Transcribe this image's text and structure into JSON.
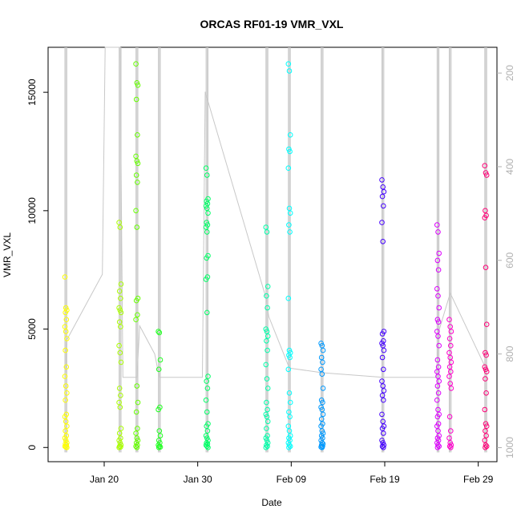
{
  "chart_data": {
    "type": "scatter",
    "title": "ORCAS RF01-19 VMR_VXL",
    "xlabel": "Date",
    "ylabel": "VMR_VXL",
    "x_axis": {
      "type": "date",
      "lim": [
        "2016-01-14",
        "2016-03-02"
      ],
      "ticks": [
        {
          "date": "2016-01-20",
          "label": "Jan 20"
        },
        {
          "date": "2016-01-30",
          "label": "Jan 30"
        },
        {
          "date": "2016-02-09",
          "label": "Feb 09"
        },
        {
          "date": "2016-02-19",
          "label": "Feb 19"
        },
        {
          "date": "2016-02-29",
          "label": "Feb 29"
        }
      ]
    },
    "y_axis": {
      "lim": [
        -600,
        16900
      ],
      "ticks": [
        0,
        5000,
        10000,
        15000
      ]
    },
    "y2_axis": {
      "label": "",
      "color": "#b0b0b0",
      "lim": [
        1030,
        145
      ],
      "ticks": [
        200,
        400,
        600,
        800,
        1000
      ]
    },
    "grid": false,
    "legend": "none",
    "pressure_line_color": "#c8c8c8",
    "pressure_trace": [
      {
        "date": "2016-01-15.9",
        "p": 840
      },
      {
        "date": "2016-01-16",
        "p": 770
      },
      {
        "date": "2016-01-19.8",
        "p": 630
      },
      {
        "date": "2016-01-20.1",
        "p": 145
      },
      {
        "date": "2016-01-21.7",
        "p": 145
      },
      {
        "date": "2016-01-22",
        "p": 850
      },
      {
        "date": "2016-01-23.5",
        "p": 850
      },
      {
        "date": "2016-01-23.8",
        "p": 740
      },
      {
        "date": "2016-01-25.4",
        "p": 800
      },
      {
        "date": "2016-01-25.9",
        "p": 850
      },
      {
        "date": "2016-01-30.5",
        "p": 850
      },
      {
        "date": "2016-01-30.8",
        "p": 240
      },
      {
        "date": "2016-02-06.3",
        "p": 680
      },
      {
        "date": "2016-02-06.6",
        "p": 720
      },
      {
        "date": "2016-02-08.8",
        "p": 830
      },
      {
        "date": "2016-02-12.3",
        "p": 840
      },
      {
        "date": "2016-02-18.8",
        "p": 850
      },
      {
        "date": "2016-02-24.5",
        "p": 850
      },
      {
        "date": "2016-02-24.8",
        "p": 750
      },
      {
        "date": "2016-02-26",
        "p": 670
      },
      {
        "date": "2016-02-29.8",
        "p": 830
      }
    ],
    "flight_profiles": [
      {
        "date": "2016-01-15.9",
        "p_top": 145,
        "p_bottom": 1010
      },
      {
        "date": "2016-01-21.7",
        "p_top": 145,
        "p_bottom": 1010
      },
      {
        "date": "2016-01-23.5",
        "p_top": 145,
        "p_bottom": 1010
      },
      {
        "date": "2016-01-25.9",
        "p_top": 145,
        "p_bottom": 1010
      },
      {
        "date": "2016-01-31",
        "p_top": 145,
        "p_bottom": 1010
      },
      {
        "date": "2016-02-06.4",
        "p_top": 145,
        "p_bottom": 1010
      },
      {
        "date": "2016-02-08.8",
        "p_top": 145,
        "p_bottom": 1010
      },
      {
        "date": "2016-02-12.3",
        "p_top": 145,
        "p_bottom": 1010
      },
      {
        "date": "2016-02-18.8",
        "p_top": 145,
        "p_bottom": 1010
      },
      {
        "date": "2016-02-24.7",
        "p_top": 145,
        "p_bottom": 1010
      },
      {
        "date": "2016-02-26",
        "p_top": 145,
        "p_bottom": 1010
      },
      {
        "date": "2016-02-29.8",
        "p_top": 145,
        "p_bottom": 1010
      }
    ],
    "series": [
      {
        "date": "2016-01-15.9",
        "color": "#ffff00",
        "values": [
          7200,
          5900,
          5800,
          5700,
          5400,
          5100,
          4900,
          4600,
          4100,
          3400,
          3000,
          2600,
          2300,
          2000,
          1400,
          1300,
          1100,
          900,
          700,
          500,
          400,
          300,
          200,
          150,
          100,
          50,
          20,
          0
        ]
      },
      {
        "date": "2016-01-21.7",
        "color": "#aaff00",
        "values": [
          9500,
          9300,
          6900,
          6600,
          6300,
          5900,
          5800,
          5700,
          5300,
          5100,
          4300,
          4000,
          3600,
          2500,
          2200,
          1900,
          1700,
          800,
          600,
          400,
          300,
          200,
          100,
          50,
          20,
          0
        ]
      },
      {
        "date": "2016-01-23.5",
        "color": "#66ff00",
        "values": [
          16200,
          15400,
          15300,
          14700,
          13200,
          12300,
          12100,
          12000,
          11500,
          11200,
          10000,
          9300,
          6300,
          6200,
          5600,
          5400,
          2600,
          1900,
          1500,
          800,
          600,
          400,
          300,
          200,
          100,
          50,
          0
        ]
      },
      {
        "date": "2016-01-25.9",
        "color": "#22ff22",
        "values": [
          4900,
          4850,
          3700,
          3300,
          1700,
          1600,
          700,
          500,
          300,
          200,
          100,
          50,
          20,
          0
        ]
      },
      {
        "date": "2016-01-31",
        "color": "#00ff66",
        "values": [
          11800,
          11500,
          10500,
          10400,
          10300,
          10200,
          10100,
          9900,
          9500,
          9400,
          9300,
          9100,
          8100,
          8000,
          7200,
          7100,
          5700,
          3000,
          2800,
          2500,
          2000,
          1500,
          1000,
          900,
          700,
          500,
          400,
          300,
          200,
          150,
          100,
          50,
          0
        ]
      },
      {
        "date": "2016-02-06.4",
        "color": "#00ffaa",
        "values": [
          9300,
          9100,
          6800,
          6400,
          5900,
          5000,
          4900,
          4700,
          4500,
          4100,
          3500,
          2900,
          2500,
          1900,
          1600,
          1400,
          1300,
          1100,
          800,
          500,
          400,
          300,
          200,
          100,
          50,
          0
        ]
      },
      {
        "date": "2016-02-08.8",
        "color": "#00ffff",
        "values": [
          16200,
          15900,
          13200,
          12600,
          12500,
          11800,
          10100,
          9900,
          9400,
          9100,
          6300,
          4100,
          4000,
          3900,
          3800,
          3300,
          2300,
          1900,
          1500,
          1300,
          900,
          700,
          500,
          400,
          300,
          200,
          100,
          50,
          0
        ]
      },
      {
        "date": "2016-02-12.3",
        "color": "#0099ff",
        "values": [
          4400,
          4300,
          4100,
          3800,
          3600,
          3300,
          3100,
          2500,
          2000,
          1900,
          1700,
          1600,
          1400,
          1200,
          1000,
          900,
          700,
          600,
          500,
          400,
          300,
          200,
          150,
          100,
          50,
          20,
          0
        ]
      },
      {
        "date": "2016-02-18.8",
        "color": "#4400ff",
        "values": [
          11300,
          11000,
          10800,
          10600,
          10200,
          9500,
          8700,
          4900,
          4800,
          4500,
          4400,
          4300,
          4100,
          3800,
          3300,
          2800,
          2600,
          2400,
          2200,
          2000,
          1400,
          1100,
          900,
          800,
          600,
          300,
          200,
          100,
          50,
          0
        ]
      },
      {
        "date": "2016-02-24.7",
        "color": "#dd00ff",
        "values": [
          9400,
          9100,
          8200,
          7900,
          7500,
          6700,
          6400,
          5900,
          5400,
          5300,
          4900,
          4700,
          4300,
          3700,
          3400,
          3200,
          3000,
          2800,
          2600,
          2300,
          2000,
          1600,
          1400,
          1300,
          1000,
          900,
          700,
          500,
          400,
          300,
          200,
          100,
          50,
          0
        ]
      },
      {
        "date": "2016-02-26",
        "color": "#ff00cc",
        "values": [
          5400,
          5100,
          4900,
          4600,
          4300,
          4000,
          3800,
          3600,
          3400,
          3200,
          3000,
          2700,
          2500,
          1300,
          700,
          400,
          200,
          100,
          50,
          0
        ]
      },
      {
        "date": "2016-02-29.8",
        "color": "#ff0077",
        "values": [
          11900,
          11600,
          11500,
          10000,
          9800,
          9700,
          7600,
          5200,
          4000,
          3900,
          3400,
          3300,
          3200,
          2900,
          2300,
          1600,
          1000,
          900,
          700,
          500,
          300,
          100,
          50,
          0
        ]
      }
    ]
  }
}
